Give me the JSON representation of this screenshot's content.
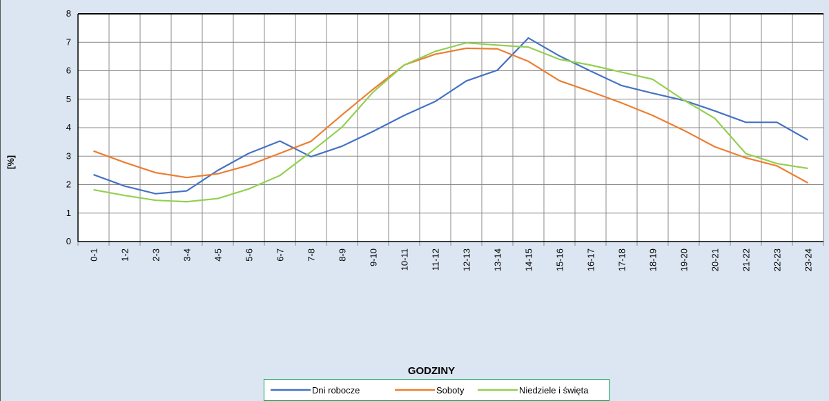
{
  "chart_data": {
    "type": "line",
    "x_label": "GODZINY",
    "y_label": "[%]",
    "categories": [
      "0-1",
      "1-2",
      "2-3",
      "3-4",
      "4-5",
      "5-6",
      "6-7",
      "7-8",
      "8-9",
      "9-10",
      "10-11",
      "11-12",
      "12-13",
      "13-14",
      "14-15",
      "15-16",
      "16-17",
      "17-18",
      "18-19",
      "19-20",
      "20-21",
      "21-22",
      "22-23",
      "23-24"
    ],
    "series": [
      {
        "name": "Dni robocze",
        "color": "#4472c4",
        "values": [
          2.35,
          1.95,
          1.68,
          1.78,
          2.5,
          3.1,
          3.53,
          2.98,
          3.35,
          3.87,
          4.43,
          4.92,
          5.64,
          6.02,
          7.15,
          6.52,
          5.99,
          5.48,
          5.21,
          4.96,
          4.59,
          4.19,
          4.19,
          3.57
        ]
      },
      {
        "name": "Soboty",
        "color": "#ed7d31",
        "values": [
          3.18,
          2.78,
          2.42,
          2.25,
          2.38,
          2.68,
          3.1,
          3.52,
          4.45,
          5.35,
          6.2,
          6.58,
          6.79,
          6.77,
          6.33,
          5.65,
          5.27,
          4.87,
          4.43,
          3.91,
          3.33,
          2.94,
          2.66,
          2.06
        ]
      },
      {
        "name": "Niedziele i święta",
        "color": "#92d050",
        "values": [
          1.82,
          1.62,
          1.45,
          1.4,
          1.51,
          1.85,
          2.32,
          3.15,
          4.02,
          5.25,
          6.2,
          6.68,
          6.98,
          6.9,
          6.83,
          6.4,
          6.2,
          5.95,
          5.7,
          4.97,
          4.33,
          3.09,
          2.74,
          2.57
        ]
      }
    ],
    "ylim": [
      0,
      8
    ],
    "yticks": [
      0,
      1,
      2,
      3,
      4,
      5,
      6,
      7,
      8
    ],
    "grid": true,
    "legend": "bottom"
  }
}
